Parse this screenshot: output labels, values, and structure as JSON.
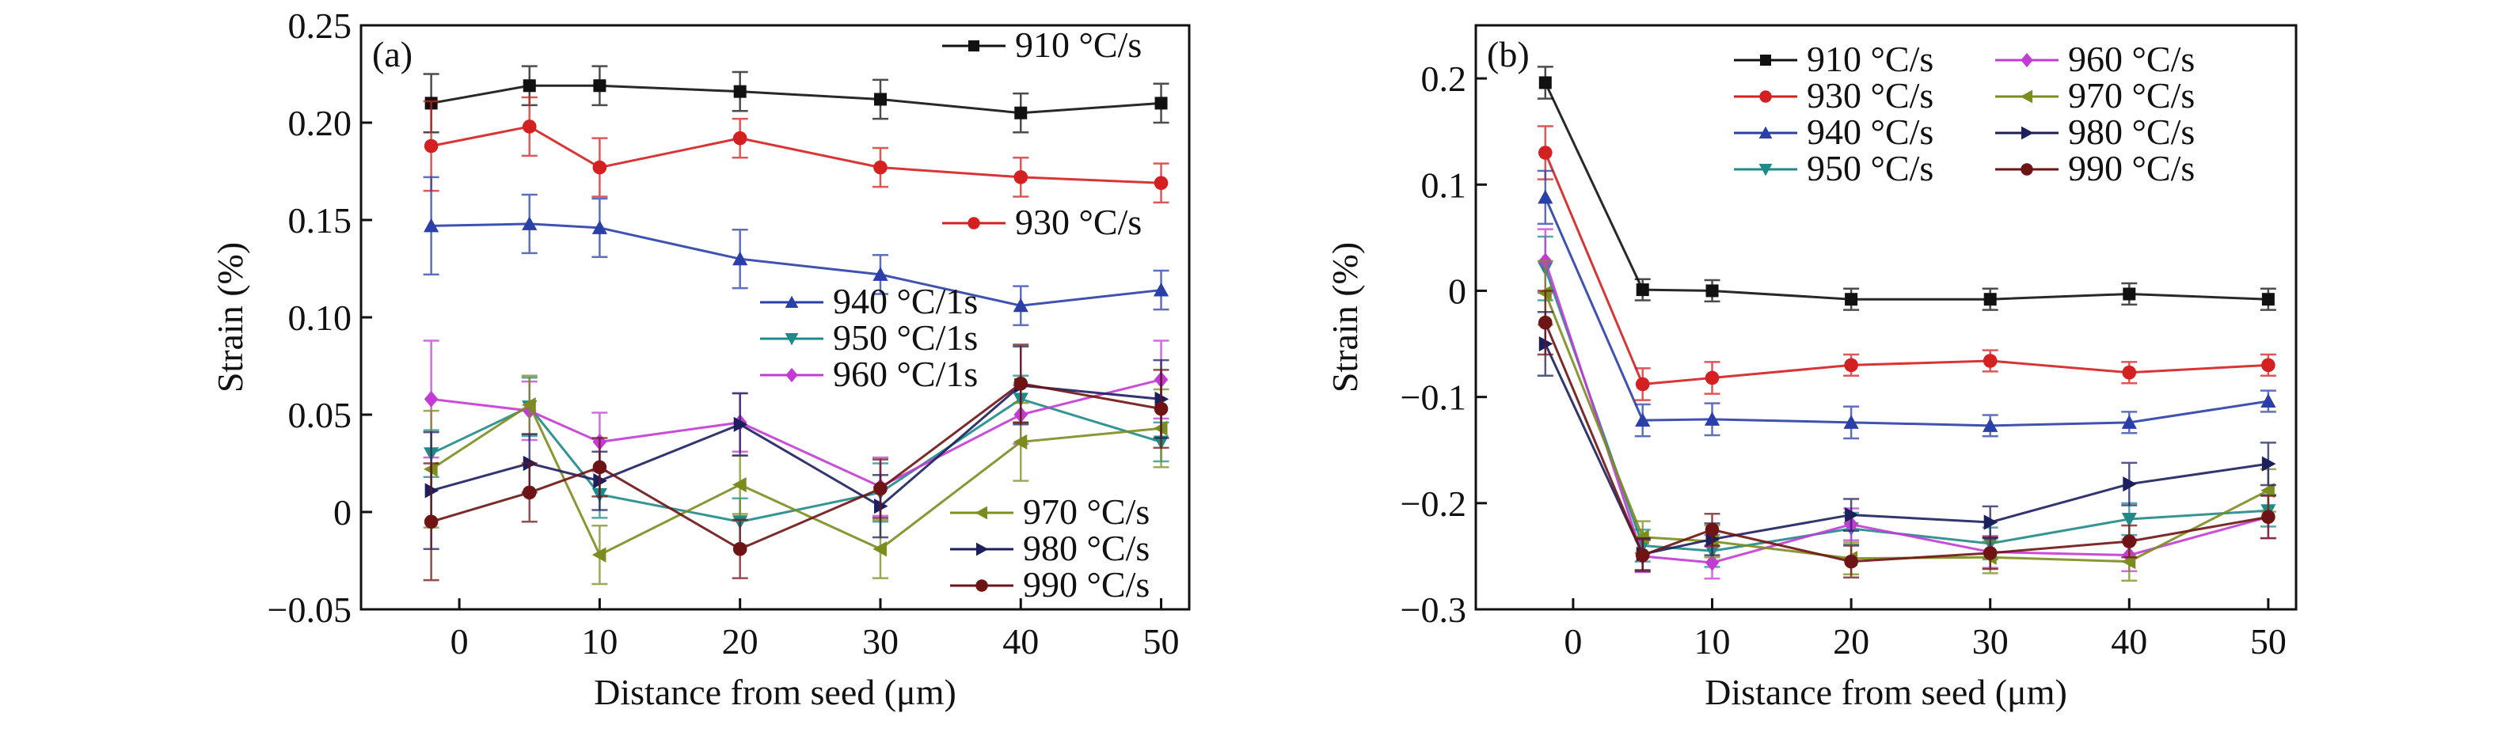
{
  "chart_data": [
    {
      "type": "line",
      "panel_label": "(a)",
      "xlabel": "Distance from seed (μm)",
      "ylabel": "Strain (%)",
      "x": [
        -2,
        5,
        10,
        20,
        30,
        40,
        50
      ],
      "xlim": [
        -7,
        52
      ],
      "ylim": [
        -0.05,
        0.25
      ],
      "xticks": [
        0,
        10,
        20,
        30,
        40,
        50
      ],
      "xtick_labels": [
        "0",
        "10",
        "20",
        "30",
        "40",
        "50"
      ],
      "yticks": [
        -0.05,
        0,
        0.05,
        0.1,
        0.15,
        0.2,
        0.25
      ],
      "ytick_labels": [
        "−0.05",
        "0",
        "0.05",
        "0.10",
        "0.15",
        "0.20",
        "0.25"
      ],
      "grid": false,
      "legend_placement": "split-right",
      "series": [
        {
          "name": "910 °C/s",
          "color": "#111111",
          "marker": "square",
          "values": [
            0.21,
            0.219,
            0.219,
            0.216,
            0.212,
            0.205,
            0.21
          ],
          "errors": [
            0.015,
            0.01,
            0.01,
            0.01,
            0.01,
            0.01,
            0.01
          ]
        },
        {
          "name": "930 °C/s",
          "color": "#d42020",
          "marker": "circle",
          "values": [
            0.188,
            0.198,
            0.177,
            0.192,
            0.177,
            0.172,
            0.169
          ],
          "errors": [
            0.023,
            0.015,
            0.015,
            0.01,
            0.01,
            0.01,
            0.01
          ]
        },
        {
          "name": "940 °C/1s",
          "color": "#2b3fa8",
          "marker": "triangle-up",
          "values": [
            0.147,
            0.148,
            0.146,
            0.13,
            0.122,
            0.106,
            0.114
          ],
          "errors": [
            0.025,
            0.015,
            0.015,
            0.015,
            0.01,
            0.01,
            0.01
          ]
        },
        {
          "name": "950 °C/1s",
          "color": "#1f8a8a",
          "marker": "triangle-down",
          "values": [
            0.03,
            0.054,
            0.009,
            -0.005,
            0.01,
            0.058,
            0.036
          ],
          "errors": [
            0.012,
            0.015,
            0.012,
            0.012,
            0.015,
            0.012,
            0.01
          ]
        },
        {
          "name": "960 °C/1s",
          "color": "#c23bd4",
          "marker": "diamond",
          "values": [
            0.058,
            0.052,
            0.036,
            0.046,
            0.013,
            0.05,
            0.068
          ],
          "errors": [
            0.03,
            0.015,
            0.015,
            0.015,
            0.015,
            0.015,
            0.02
          ]
        },
        {
          "name": "970 °C/s",
          "color": "#7d8c1f",
          "marker": "triangle-left",
          "values": [
            0.022,
            0.055,
            -0.022,
            0.014,
            -0.019,
            0.036,
            0.043
          ],
          "errors": [
            0.03,
            0.015,
            0.015,
            0.015,
            0.015,
            0.02,
            0.02
          ]
        },
        {
          "name": "980 °C/s",
          "color": "#1c1f5e",
          "marker": "triangle-right",
          "values": [
            0.011,
            0.025,
            0.016,
            0.045,
            0.003,
            0.065,
            0.058
          ],
          "errors": [
            0.03,
            0.015,
            0.015,
            0.016,
            0.016,
            0.02,
            0.02
          ]
        },
        {
          "name": "990 °C/s",
          "color": "#6e1414",
          "marker": "circle",
          "values": [
            -0.005,
            0.01,
            0.023,
            -0.019,
            0.012,
            0.066,
            0.053
          ],
          "errors": [
            0.03,
            0.015,
            0.015,
            0.015,
            0.015,
            0.02,
            0.02
          ]
        }
      ]
    },
    {
      "type": "line",
      "panel_label": "(b)",
      "xlabel": "Distance from seed (μm)",
      "ylabel": "Strain (%)",
      "x": [
        -2,
        5,
        10,
        20,
        30,
        40,
        50
      ],
      "xlim": [
        -7,
        52
      ],
      "ylim": [
        -0.3,
        0.25
      ],
      "xticks": [
        0,
        10,
        20,
        30,
        40,
        50
      ],
      "xtick_labels": [
        "0",
        "10",
        "20",
        "30",
        "40",
        "50"
      ],
      "yticks": [
        -0.3,
        -0.2,
        -0.1,
        0,
        0.1,
        0.2
      ],
      "ytick_labels": [
        "−0.3",
        "−0.2",
        "−0.1",
        "0",
        "0.1",
        "0.2"
      ],
      "grid": false,
      "legend_placement": "top-right",
      "series": [
        {
          "name": "910 °C/s",
          "color": "#111111",
          "marker": "square",
          "values": [
            0.196,
            0.001,
            0.0,
            -0.008,
            -0.008,
            -0.003,
            -0.008
          ],
          "errors": [
            0.015,
            0.01,
            0.01,
            0.01,
            0.01,
            0.01,
            0.01
          ]
        },
        {
          "name": "930 °C/s",
          "color": "#d42020",
          "marker": "circle",
          "values": [
            0.13,
            -0.088,
            -0.082,
            -0.07,
            -0.066,
            -0.077,
            -0.07
          ],
          "errors": [
            0.025,
            0.015,
            0.015,
            0.01,
            0.01,
            0.01,
            0.01
          ]
        },
        {
          "name": "940 °C/s",
          "color": "#2b3fa8",
          "marker": "triangle-up",
          "values": [
            0.088,
            -0.122,
            -0.121,
            -0.124,
            -0.127,
            -0.124,
            -0.104
          ],
          "errors": [
            0.025,
            0.015,
            0.015,
            0.015,
            0.01,
            0.01,
            0.01
          ]
        },
        {
          "name": "950 °C/s",
          "color": "#1f8a8a",
          "marker": "triangle-down",
          "values": [
            0.021,
            -0.24,
            -0.245,
            -0.224,
            -0.238,
            -0.215,
            -0.207
          ],
          "errors": [
            0.03,
            0.015,
            0.015,
            0.015,
            0.015,
            0.015,
            0.015
          ]
        },
        {
          "name": "960 °C/s",
          "color": "#c23bd4",
          "marker": "diamond",
          "values": [
            0.028,
            -0.25,
            -0.256,
            -0.22,
            -0.246,
            -0.249,
            -0.213
          ],
          "errors": [
            0.03,
            0.015,
            0.015,
            0.015,
            0.015,
            0.015,
            0.02
          ]
        },
        {
          "name": "970 °C/s",
          "color": "#7d8c1f",
          "marker": "triangle-left",
          "values": [
            -0.002,
            -0.232,
            -0.236,
            -0.252,
            -0.251,
            -0.255,
            -0.188
          ],
          "errors": [
            0.03,
            0.015,
            0.015,
            0.015,
            0.015,
            0.018,
            0.02
          ]
        },
        {
          "name": "980 °C/s",
          "color": "#1c1f5e",
          "marker": "triangle-right",
          "values": [
            -0.05,
            -0.248,
            -0.234,
            -0.211,
            -0.218,
            -0.182,
            -0.163
          ],
          "errors": [
            0.03,
            0.015,
            0.015,
            0.015,
            0.015,
            0.02,
            0.02
          ]
        },
        {
          "name": "990 °C/s",
          "color": "#6e1414",
          "marker": "circle",
          "values": [
            -0.03,
            -0.249,
            -0.225,
            -0.255,
            -0.247,
            -0.236,
            -0.213
          ],
          "errors": [
            0.03,
            0.015,
            0.015,
            0.015,
            0.015,
            0.015,
            0.02
          ]
        }
      ]
    }
  ]
}
